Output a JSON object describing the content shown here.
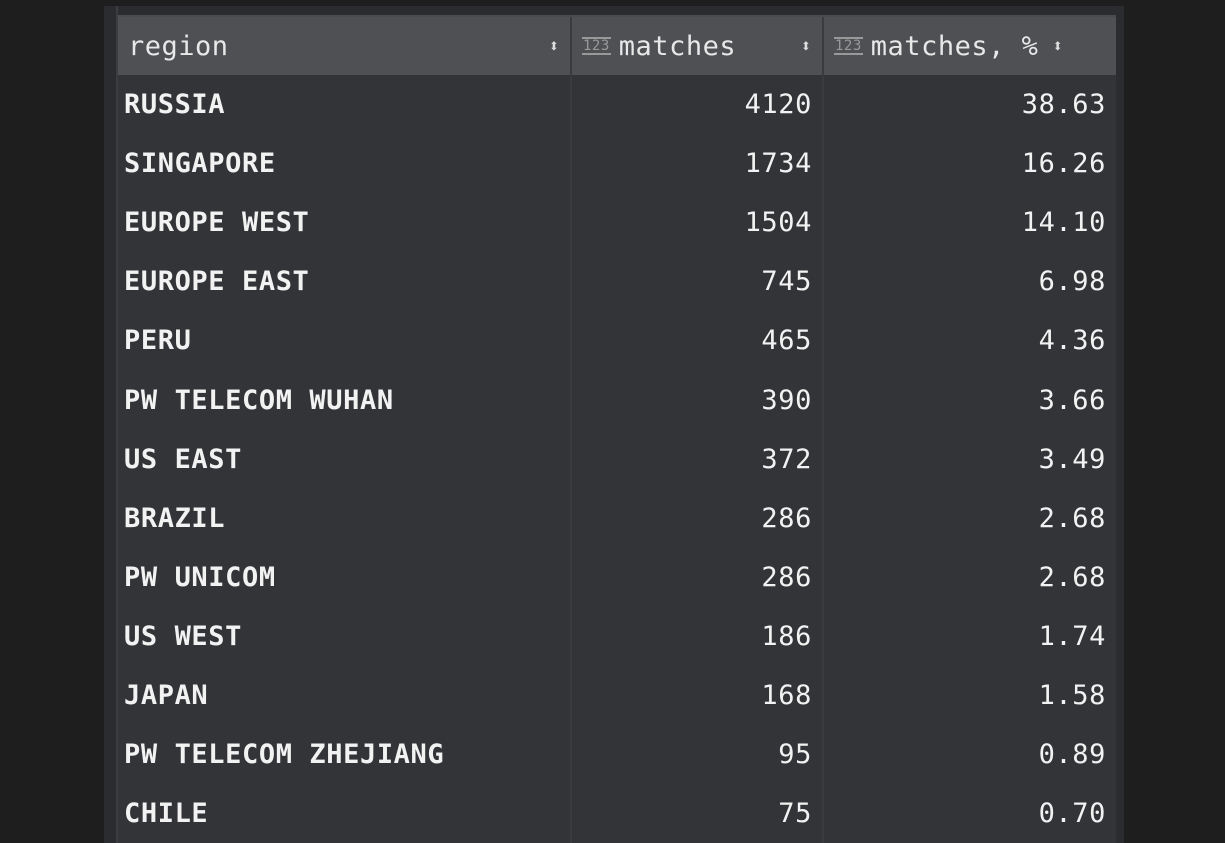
{
  "columns": [
    {
      "label": "region",
      "type_icon": null,
      "sort_icon": "sort-arrows-icon"
    },
    {
      "label": "matches",
      "type_icon": "numeric-123-icon",
      "sort_icon": "sort-arrows-icon"
    },
    {
      "label": "matches, %",
      "type_icon": "numeric-123-icon",
      "sort_icon": "sort-arrows-icon"
    }
  ],
  "icons": {
    "numeric": "123",
    "sort": "⇕"
  },
  "rows": [
    {
      "region": "RUSSIA",
      "matches": "4120",
      "pct": "38.63"
    },
    {
      "region": "SINGAPORE",
      "matches": "1734",
      "pct": "16.26"
    },
    {
      "region": "EUROPE WEST",
      "matches": "1504",
      "pct": "14.10"
    },
    {
      "region": "EUROPE EAST",
      "matches": "745",
      "pct": "6.98"
    },
    {
      "region": "PERU",
      "matches": "465",
      "pct": "4.36"
    },
    {
      "region": "PW TELECOM WUHAN",
      "matches": "390",
      "pct": "3.66"
    },
    {
      "region": "US EAST",
      "matches": "372",
      "pct": "3.49"
    },
    {
      "region": "BRAZIL",
      "matches": "286",
      "pct": "2.68"
    },
    {
      "region": "PW UNICOM",
      "matches": "286",
      "pct": "2.68"
    },
    {
      "region": "US WEST",
      "matches": "186",
      "pct": "1.74"
    },
    {
      "region": "JAPAN",
      "matches": "168",
      "pct": "1.58"
    },
    {
      "region": "PW TELECOM ZHEJIANG",
      "matches": "95",
      "pct": "0.89"
    },
    {
      "region": "CHILE",
      "matches": "75",
      "pct": "0.70"
    }
  ]
}
